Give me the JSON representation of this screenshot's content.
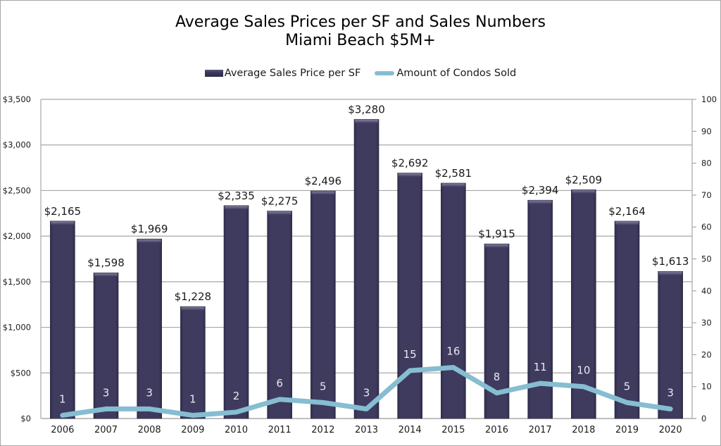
{
  "chart_data": {
    "type": "bar",
    "title": "Average Sales Prices per SF and Sales Numbers",
    "subtitle": "Miami Beach $5M+",
    "categories": [
      "2006",
      "2007",
      "2008",
      "2009",
      "2010",
      "2011",
      "2012",
      "2013",
      "2014",
      "2015",
      "2016",
      "2017",
      "2018",
      "2019",
      "2020"
    ],
    "series": [
      {
        "name": "Average Sales Price per SF",
        "type": "bar",
        "axis": "left",
        "color": "#3b3858",
        "values": [
          2165,
          1598,
          1969,
          1228,
          2335,
          2275,
          2496,
          3280,
          2692,
          2581,
          1915,
          2394,
          2509,
          2164,
          1613
        ],
        "labels": [
          "$2,165",
          "$1,598",
          "$1,969",
          "$1,228",
          "$2,335",
          "$2,275",
          "$2,496",
          "$3,280",
          "$2,692",
          "$2,581",
          "$1,915",
          "$2,394",
          "$2,509",
          "$2,164",
          "$1,613"
        ]
      },
      {
        "name": "Amount of Condos Sold",
        "type": "line",
        "axis": "right",
        "color": "#86bdd1",
        "values": [
          1,
          3,
          3,
          1,
          2,
          6,
          5,
          3,
          15,
          16,
          8,
          11,
          10,
          5,
          3
        ],
        "labels": [
          "1",
          "3",
          "3",
          "1",
          "2",
          "6",
          "5",
          "3",
          "15",
          "16",
          "8",
          "11",
          "10",
          "5",
          "3"
        ]
      }
    ],
    "xlabel": "",
    "ylabel": "",
    "ylim": [
      0,
      3500
    ],
    "y_ticks": [
      0,
      500,
      1000,
      1500,
      2000,
      2500,
      3000,
      3500
    ],
    "y_tick_labels": [
      "$0",
      "$500",
      "$1,000",
      "$1,500",
      "$2,000",
      "$2,500",
      "$3,000",
      "$3,500"
    ],
    "y2lim": [
      0,
      100
    ],
    "y2_ticks": [
      0,
      10,
      20,
      30,
      40,
      50,
      60,
      70,
      80,
      90,
      100
    ],
    "y2_tick_labels": [
      "0",
      "10",
      "20",
      "30",
      "40",
      "50",
      "60",
      "70",
      "80",
      "90",
      "100"
    ],
    "grid": true,
    "legend_position": "top"
  }
}
